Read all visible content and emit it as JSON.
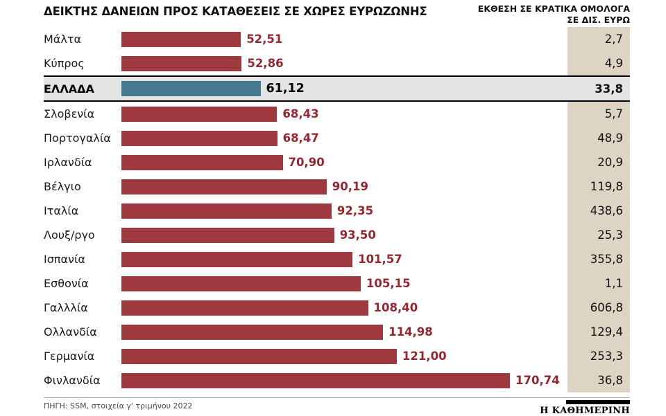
{
  "title": "ΔΕΙΚΤΗΣ ΔΑΝΕΙΩΝ ΠΡΟΣ ΚΑΤΑΘΕΣΕΙΣ ΣΕ ΧΩΡΕΣ ΕΥΡΩΖΩΝΗΣ",
  "right_header_line1": "ΕΚΘΕΣΗ ΣΕ ΚΡΑΤΙΚΑ ΟΜΟΛΟΓΑ",
  "right_header_line2": "ΣΕ ΔΙΣ. ΕΥΡΩ",
  "source": "ΠΗΓΗ: SSM, στοιχεία γ' τριμήνου 2022",
  "logo": "Η ΚΑΘΗΜΕΡΙΝΗ",
  "colors": {
    "bar": "#9e3a3f",
    "highlight_bar": "#44798f",
    "value_text": "#96272e",
    "bonds_column_bg": "#ddd4c3",
    "highlight_row_bg": "#e4e4e4"
  },
  "chart_data": {
    "type": "bar",
    "orientation": "horizontal",
    "title": "ΔΕΙΚΤΗΣ ΔΑΝΕΙΩΝ ΠΡΟΣ ΚΑΤΑΘΕΣΕΙΣ ΣΕ ΧΩΡΕΣ ΕΥΡΩΖΩΝΗΣ",
    "secondary_column_header": "ΕΚΘΕΣΗ ΣΕ ΚΡΑΤΙΚΑ ΟΜΟΛΟΓΑ ΣΕ ΔΙΣ. ΕΥΡΩ",
    "xlim": [
      0,
      180
    ],
    "highlight_index": 2,
    "rows": [
      {
        "label": "Μάλτα",
        "ratio": 52.51,
        "ratio_label": "52,51",
        "bonds": 2.7,
        "bonds_label": "2,7",
        "highlight": false
      },
      {
        "label": "Κύπρος",
        "ratio": 52.86,
        "ratio_label": "52,86",
        "bonds": 4.9,
        "bonds_label": "4,9",
        "highlight": false
      },
      {
        "label": "ΕΛΛΑΔΑ",
        "ratio": 61.12,
        "ratio_label": "61,12",
        "bonds": 33.8,
        "bonds_label": "33,8",
        "highlight": true
      },
      {
        "label": "Σλοβενία",
        "ratio": 68.43,
        "ratio_label": "68,43",
        "bonds": 5.7,
        "bonds_label": "5,7",
        "highlight": false
      },
      {
        "label": "Πορτογαλία",
        "ratio": 68.47,
        "ratio_label": "68,47",
        "bonds": 48.9,
        "bonds_label": "48,9",
        "highlight": false
      },
      {
        "label": "Ιρλανδία",
        "ratio": 70.9,
        "ratio_label": "70,90",
        "bonds": 20.9,
        "bonds_label": "20,9",
        "highlight": false
      },
      {
        "label": "Βέλγιο",
        "ratio": 90.19,
        "ratio_label": "90,19",
        "bonds": 119.8,
        "bonds_label": "119,8",
        "highlight": false
      },
      {
        "label": "Ιταλία",
        "ratio": 92.35,
        "ratio_label": "92,35",
        "bonds": 438.6,
        "bonds_label": "438,6",
        "highlight": false
      },
      {
        "label": "Λουξ/ργο",
        "ratio": 93.5,
        "ratio_label": "93,50",
        "bonds": 25.3,
        "bonds_label": "25,3",
        "highlight": false
      },
      {
        "label": "Ισπανία",
        "ratio": 101.57,
        "ratio_label": "101,57",
        "bonds": 355.8,
        "bonds_label": "355,8",
        "highlight": false
      },
      {
        "label": "Εσθονία",
        "ratio": 105.15,
        "ratio_label": "105,15",
        "bonds": 1.1,
        "bonds_label": "1,1",
        "highlight": false
      },
      {
        "label": "Γαλλλία",
        "ratio": 108.4,
        "ratio_label": "108,40",
        "bonds": 606.8,
        "bonds_label": "606,8",
        "highlight": false
      },
      {
        "label": "Ολλανδία",
        "ratio": 114.98,
        "ratio_label": "114,98",
        "bonds": 129.4,
        "bonds_label": "129,4",
        "highlight": false
      },
      {
        "label": "Γερμανία",
        "ratio": 121.0,
        "ratio_label": "121,00",
        "bonds": 253.3,
        "bonds_label": "253,3",
        "highlight": false
      },
      {
        "label": "Φινλανδία",
        "ratio": 170.74,
        "ratio_label": "170,74",
        "bonds": 36.8,
        "bonds_label": "36,8",
        "highlight": false
      }
    ]
  }
}
